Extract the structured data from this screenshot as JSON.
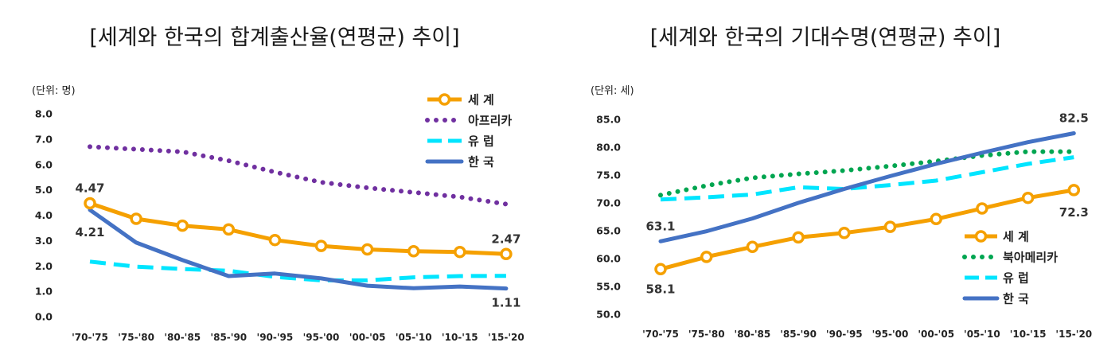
{
  "chart_data": [
    {
      "type": "line",
      "title": "[세계와 한국의 합계출산율(연평균) 추이]",
      "unit_label": "(단위: 명)",
      "categories": [
        "'70-'75",
        "'75-'80",
        "'80-'85",
        "'85-'90",
        "'90-'95",
        "'95-'00",
        "'00-'05",
        "'05-'10",
        "'10-'15",
        "'15-'20"
      ],
      "ylim": [
        0,
        8
      ],
      "yticks": [
        "0.0",
        "1.0",
        "2.0",
        "3.0",
        "4.0",
        "5.0",
        "6.0",
        "7.0",
        "8.0"
      ],
      "series": [
        {
          "name": "세 계",
          "style": "circle-line",
          "color": "#F5A000",
          "values": [
            4.47,
            3.86,
            3.59,
            3.44,
            3.02,
            2.79,
            2.65,
            2.58,
            2.55,
            2.47
          ]
        },
        {
          "name": "아프리카",
          "style": "dotted",
          "color": "#7030A0",
          "values": [
            6.7,
            6.6,
            6.5,
            6.15,
            5.7,
            5.3,
            5.08,
            4.9,
            4.72,
            4.44
          ]
        },
        {
          "name": "유 럽",
          "style": "dashed",
          "color": "#00E5FF",
          "values": [
            2.17,
            1.97,
            1.88,
            1.81,
            1.57,
            1.43,
            1.43,
            1.55,
            1.6,
            1.61
          ]
        },
        {
          "name": "한 국",
          "style": "solid",
          "color": "#4472C4",
          "values": [
            4.21,
            2.92,
            2.23,
            1.6,
            1.7,
            1.51,
            1.22,
            1.12,
            1.19,
            1.11
          ]
        }
      ],
      "data_labels": [
        {
          "series": 0,
          "index": 0,
          "text": "4.47"
        },
        {
          "series": 3,
          "index": 0,
          "text": "4.21"
        },
        {
          "series": 0,
          "index": 9,
          "text": "2.47"
        },
        {
          "series": 3,
          "index": 9,
          "text": "1.11"
        }
      ]
    },
    {
      "type": "line",
      "title": "[세계와 한국의 기대수명(연평균) 추이]",
      "unit_label": "(단위: 세)",
      "categories": [
        "'70-'75",
        "'75-'80",
        "'80-'85",
        "'85-'90",
        "'90-'95",
        "'95-'00",
        "'00-'05",
        "'05-'10",
        "'10-'15",
        "'15-'20"
      ],
      "ylim": [
        50,
        85
      ],
      "yticks": [
        "50.0",
        "55.0",
        "60.0",
        "65.0",
        "70.0",
        "75.0",
        "80.0",
        "85.0"
      ],
      "series": [
        {
          "name": "세 계",
          "style": "circle-line",
          "color": "#F5A000",
          "values": [
            58.1,
            60.3,
            62.1,
            63.8,
            64.6,
            65.7,
            67.1,
            69.0,
            70.9,
            72.3
          ]
        },
        {
          "name": "북아메리카",
          "style": "dotted",
          "color": "#00A550",
          "values": [
            71.4,
            73.1,
            74.5,
            75.2,
            75.8,
            76.6,
            77.5,
            78.5,
            79.2,
            79.2
          ]
        },
        {
          "name": "유 럽",
          "style": "dashed",
          "color": "#00E5FF",
          "values": [
            70.6,
            71.0,
            71.5,
            72.8,
            72.5,
            73.2,
            74.0,
            75.5,
            77.0,
            78.2
          ]
        },
        {
          "name": "한 국",
          "style": "solid",
          "color": "#4472C4",
          "values": [
            63.1,
            64.9,
            67.2,
            70.0,
            72.5,
            74.8,
            77.0,
            79.0,
            80.9,
            82.5
          ]
        }
      ],
      "data_labels": [
        {
          "series": 3,
          "index": 0,
          "text": "63.1"
        },
        {
          "series": 0,
          "index": 0,
          "text": "58.1"
        },
        {
          "series": 3,
          "index": 9,
          "text": "82.5"
        },
        {
          "series": 0,
          "index": 9,
          "text": "72.3"
        }
      ]
    }
  ]
}
